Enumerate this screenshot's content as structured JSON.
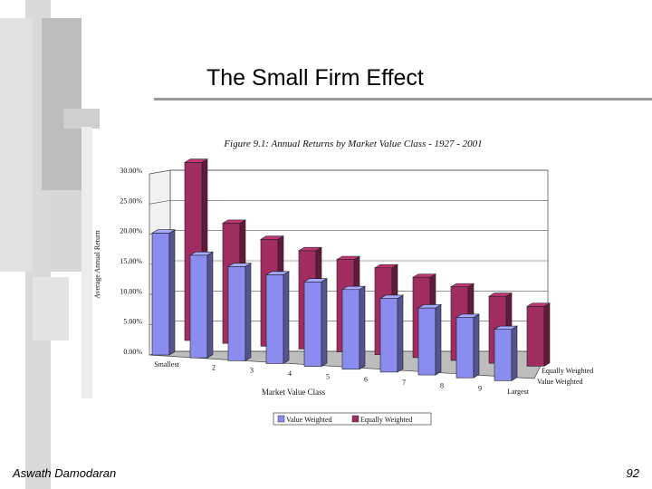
{
  "slide": {
    "title": "The Small Firm Effect",
    "author": "Aswath Damodaran",
    "page_number": "92"
  },
  "colors": {
    "value_weighted": "#8a8cf0",
    "equally_weighted": "#a02c60",
    "slide_accent": "#c8c8c8"
  },
  "chart_data": {
    "type": "bar",
    "title": "Figure 9.1: Annual Returns by Market Value Class - 1927 - 2001",
    "xlabel": "Market Value Class",
    "ylabel": "Average Annual Return",
    "categories": [
      "Smallest",
      "2",
      "3",
      "4",
      "5",
      "6",
      "7",
      "8",
      "9",
      "Largest"
    ],
    "yticks": [
      "0.00%",
      "5.00%",
      "10.00%",
      "15.00%",
      "20.00%",
      "25.00%",
      "30.00%"
    ],
    "ylim": [
      0,
      30
    ],
    "series": [
      {
        "name": "Value Weighted",
        "values": [
          20.2,
          17.0,
          15.6,
          14.7,
          14.0,
          13.2,
          12.2,
          11.1,
          10.0,
          8.5
        ]
      },
      {
        "name": "Equally Weighted",
        "values": [
          29.5,
          19.9,
          17.7,
          16.3,
          15.3,
          14.4,
          13.3,
          12.2,
          11.1,
          9.9
        ]
      }
    ],
    "depth_labels": [
      "Equally Weighted",
      "Value Weighted"
    ],
    "legend_position": "bottom",
    "grid": true
  }
}
